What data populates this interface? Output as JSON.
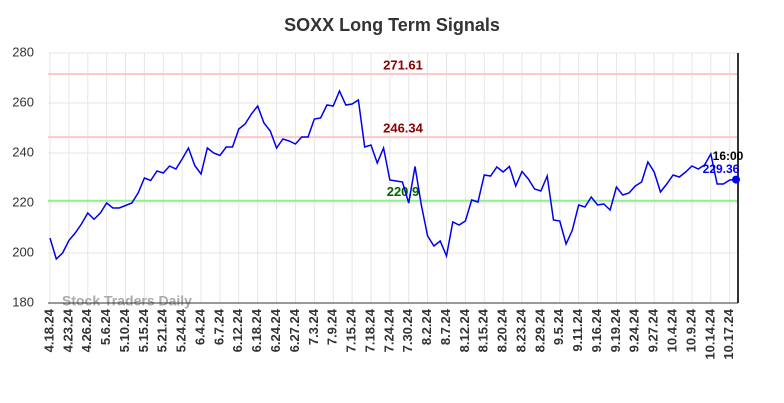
{
  "chart_data": {
    "type": "line",
    "title": "SOXX Long Term Signals",
    "categories": [
      "4.18.24",
      null,
      null,
      "4.23.24",
      null,
      null,
      "4.26.24",
      null,
      null,
      "5.6.24",
      null,
      null,
      "5.10.24",
      null,
      null,
      "5.15.24",
      null,
      null,
      "5.21.24",
      null,
      null,
      "5.24.24",
      null,
      null,
      "6.4.24",
      null,
      null,
      "6.7.24",
      null,
      null,
      "6.12.24",
      null,
      null,
      "6.18.24",
      null,
      null,
      "6.24.24",
      null,
      null,
      "6.27.24",
      null,
      null,
      "7.3.24",
      null,
      null,
      "7.9.24",
      null,
      null,
      "7.15.24",
      null,
      null,
      "7.18.24",
      null,
      null,
      "7.24.24",
      null,
      null,
      "7.30.24",
      null,
      null,
      "8.2.24",
      null,
      null,
      "8.7.24",
      null,
      null,
      "8.12.24",
      null,
      null,
      "8.15.24",
      null,
      null,
      "8.20.24",
      null,
      null,
      "8.23.24",
      null,
      null,
      "8.29.24",
      null,
      null,
      "9.5.24",
      null,
      null,
      "9.11.24",
      null,
      null,
      "9.16.24",
      null,
      null,
      "9.19.24",
      null,
      null,
      "9.24.24",
      null,
      null,
      "9.27.24",
      null,
      null,
      "10.4.24",
      null,
      null,
      "10.9.24",
      null,
      null,
      "10.14.24",
      null,
      null,
      "10.17.24",
      null
    ],
    "values": [
      206,
      197.6,
      200,
      205,
      208,
      211.6,
      216,
      213.5,
      216,
      220,
      218,
      218,
      219,
      220,
      224,
      230,
      229,
      232.8,
      232,
      234.8,
      233.6,
      237.6,
      242,
      235,
      231.6,
      242,
      240,
      239,
      242.4,
      242.4,
      249.6,
      251.6,
      255.6,
      258.8,
      252,
      248.8,
      242,
      245.6,
      244.8,
      243.6,
      246.4,
      246.4,
      253.6,
      254,
      259.2,
      258.8,
      264.8,
      259.2,
      259.6,
      261.2,
      242.4,
      243.2,
      236,
      242,
      229.2,
      228.8,
      228.4,
      220,
      234.6,
      219.2,
      206.8,
      202.8,
      204.8,
      198.8,
      212.4,
      211.2,
      212.8,
      221.2,
      220.4,
      231.2,
      230.8,
      234.4,
      232.4,
      234.6,
      226.8,
      232.6,
      229.6,
      225.6,
      224.8,
      230.8,
      213.2,
      212.8,
      203.6,
      209.2,
      219.2,
      218.4,
      222.4,
      219.2,
      219.6,
      217.2,
      226.4,
      223.2,
      224,
      226.8,
      228.4,
      236.4,
      232.4,
      224.4,
      227.6,
      231.2,
      230.4,
      232.4,
      234.8,
      233.6,
      235.2,
      239.6,
      227.6,
      227.6,
      229.2,
      229.36
    ],
    "color": "#0000ee",
    "ylim": [
      180,
      280
    ],
    "yticks": [
      180,
      200,
      220,
      240,
      260,
      280
    ],
    "grid": true,
    "levels": [
      {
        "value": 271.61,
        "color": "#ffc8c8",
        "text_color": "#8b0000"
      },
      {
        "value": 246.34,
        "color": "#ffc8c8",
        "text_color": "#8b0000"
      },
      {
        "value": 220.9,
        "color": "#90ee90",
        "text_color": "#006400"
      }
    ],
    "last_time": "16:00",
    "watermark": "Stock Traders Daily"
  }
}
